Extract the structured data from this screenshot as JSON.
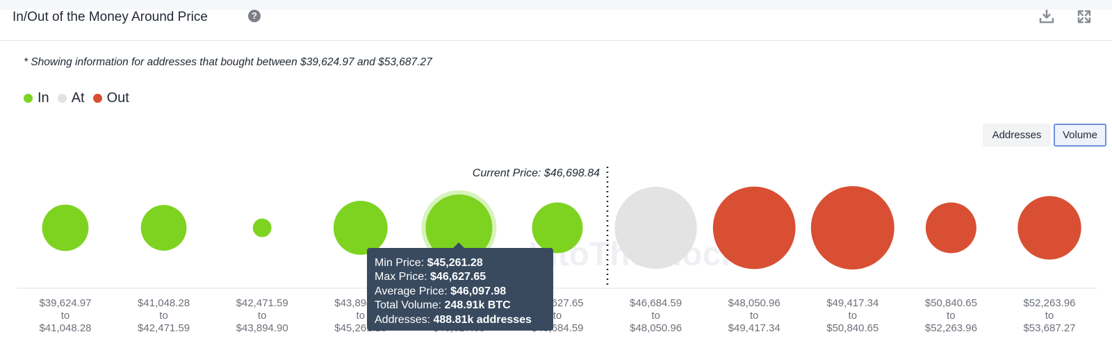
{
  "header": {
    "title": "In/Out of the Money Around Price",
    "help_glyph": "?"
  },
  "note": "* Showing information for addresses that bought between $39,624.97 and $53,687.27",
  "legend": [
    {
      "label": "In",
      "color": "#7ed321"
    },
    {
      "label": "At",
      "color": "#e3e3e3"
    },
    {
      "label": "Out",
      "color": "#d94f34"
    }
  ],
  "toggles": {
    "addresses_label": "Addresses",
    "volume_label": "Volume",
    "active": "Volume"
  },
  "watermark": "IntoTheBlock",
  "chart_data": {
    "type": "bubble",
    "current_price_label": "Current Price: $46,698.84",
    "current_price": 46698.84,
    "size_metric": "Volume",
    "buckets": [
      {
        "min": "$39,624.97",
        "max": "$41,048.28",
        "status": "In",
        "relative_size": 0.31
      },
      {
        "min": "$41,048.28",
        "max": "$42,471.59",
        "status": "In",
        "relative_size": 0.3
      },
      {
        "min": "$42,471.59",
        "max": "$43,894.90",
        "status": "In",
        "relative_size": 0.05
      },
      {
        "min": "$43,894.90",
        "max": "$45,261.28",
        "status": "In",
        "relative_size": 0.42
      },
      {
        "min": "$45,261.28",
        "max": "$46,627.65",
        "status": "In",
        "relative_size": 0.64,
        "highlighted": true
      },
      {
        "min": "$46,627.65",
        "max": "$46,684.59",
        "status": "In",
        "relative_size": 0.37
      },
      {
        "min": "$46,684.59",
        "max": "$48,050.96",
        "status": "At",
        "relative_size": 0.97
      },
      {
        "min": "$48,050.96",
        "max": "$49,417.34",
        "status": "Out",
        "relative_size": 0.98
      },
      {
        "min": "$49,417.34",
        "max": "$50,840.65",
        "status": "Out",
        "relative_size": 1.0
      },
      {
        "min": "$50,840.65",
        "max": "$52,263.96",
        "status": "Out",
        "relative_size": 0.37
      },
      {
        "min": "$52,263.96",
        "max": "$53,687.27",
        "status": "Out",
        "relative_size": 0.58
      }
    ],
    "connector": "to",
    "colors": {
      "In": "#7ed321",
      "At": "#e3e3e3",
      "Out": "#d94f34"
    }
  },
  "tooltip": {
    "min_label": "Min Price:",
    "min_value": "$45,261.28",
    "max_label": "Max Price:",
    "max_value": "$46,627.65",
    "avg_label": "Average Price:",
    "avg_value": "$46,097.98",
    "volume_label": "Total Volume:",
    "volume_value": "248.91k BTC",
    "addresses_label": "Addresses:",
    "addresses_value": "488.81k addresses"
  }
}
